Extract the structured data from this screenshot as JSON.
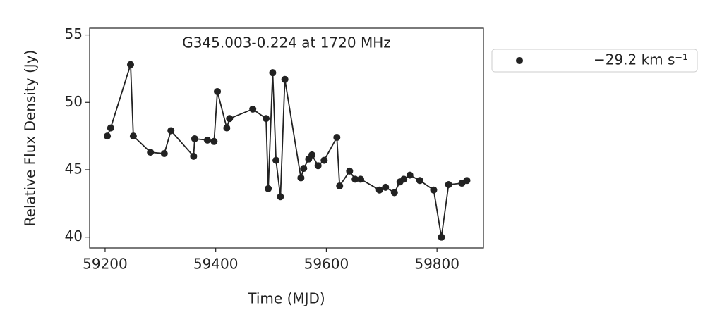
{
  "chart_data": {
    "type": "line",
    "title": "G345.003-0.224 at 1720 MHz",
    "x_label": "Time (MJD)",
    "y_label": "Relative Flux Density (Jy)",
    "x": [
      59204,
      59210,
      59246,
      59251,
      59282,
      59307,
      59319,
      59360,
      59362,
      59385,
      59397,
      59403,
      59420,
      59425,
      59467,
      59491,
      59495,
      59503,
      59509,
      59517,
      59525,
      59554,
      59559,
      59568,
      59574,
      59585,
      59596,
      59619,
      59624,
      59642,
      59652,
      59662,
      59696,
      59707,
      59723,
      59733,
      59740,
      59751,
      59769,
      59794,
      59808,
      59821,
      59845,
      59854
    ],
    "series": [
      {
        "name": "−29.2 km s⁻¹",
        "color": "#222222",
        "values": [
          47.5,
          48.1,
          52.8,
          47.5,
          46.3,
          46.2,
          47.9,
          46.0,
          47.3,
          47.2,
          47.1,
          50.8,
          48.1,
          48.8,
          49.5,
          48.8,
          43.6,
          52.2,
          45.7,
          43.0,
          51.7,
          44.4,
          45.1,
          45.8,
          46.1,
          45.3,
          45.7,
          47.4,
          43.8,
          44.9,
          44.3,
          44.3,
          43.5,
          43.7,
          43.3,
          44.1,
          44.3,
          44.6,
          44.2,
          43.5,
          40.0,
          43.9,
          44.0,
          44.2
        ]
      }
    ],
    "xlim": [
      59172,
      59884
    ],
    "ylim": [
      39.2,
      55.5
    ],
    "xticks": [
      59200,
      59400,
      59600,
      59800
    ],
    "yticks": [
      40,
      45,
      50,
      55
    ],
    "legend": "outside-right"
  }
}
